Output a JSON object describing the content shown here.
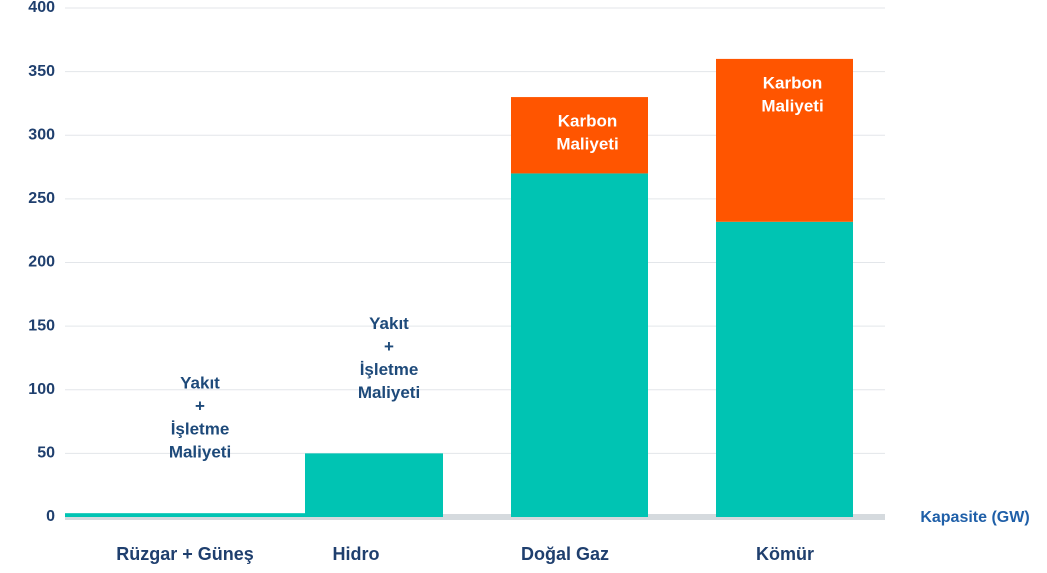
{
  "chart_data": {
    "type": "bar",
    "stacked": true,
    "xlabel": "Kapasite (GW)",
    "categories": [
      "Rüzgar + Güneş",
      "Hidro",
      "Doğal Gaz",
      "Kömür"
    ],
    "series": [
      {
        "name_lines": [
          "Yakıt",
          "+",
          "İşletme",
          "Maliyeti"
        ],
        "color": "#00c4b3",
        "values": [
          3,
          50,
          270,
          232
        ]
      },
      {
        "name_lines": [
          "Karbon",
          "Maliyeti"
        ],
        "color": "#ff5500",
        "values": [
          null,
          null,
          60,
          128
        ]
      }
    ],
    "ylim": [
      0,
      400
    ],
    "yticks": [
      0,
      50,
      100,
      150,
      200,
      250,
      300,
      350,
      400
    ],
    "grid": true
  }
}
